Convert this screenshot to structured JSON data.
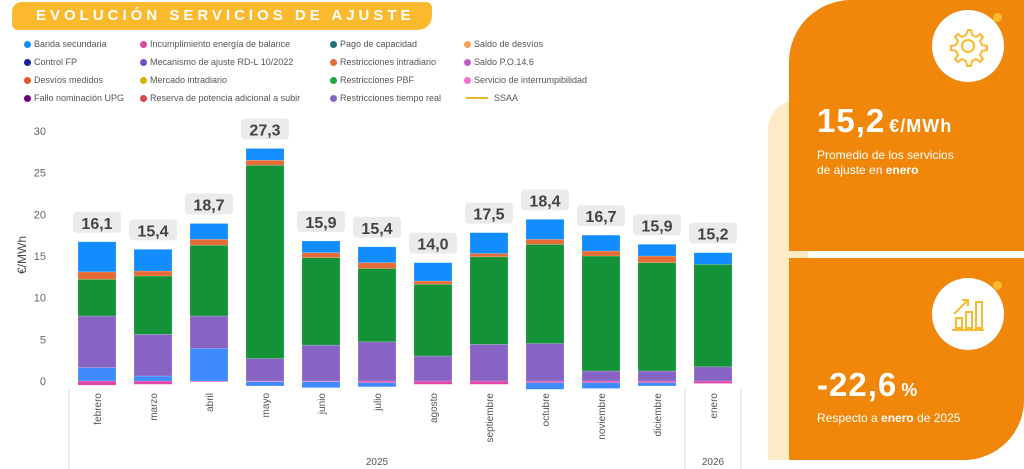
{
  "title": "EVOLUCIÓN SERVICIOS DE AJUSTE",
  "legend": [
    {
      "label": "Banda secundaria",
      "color": "#118DFF",
      "kind": "dot"
    },
    {
      "label": "Incumplimiento energía de balance",
      "color": "#E044A7",
      "kind": "dot"
    },
    {
      "label": "Pago de capacidad",
      "color": "#197278",
      "kind": "dot"
    },
    {
      "label": "Saldo de desvíos",
      "color": "#FFA058",
      "kind": "dot"
    },
    {
      "label": "Control FP",
      "color": "#12239E",
      "kind": "dot"
    },
    {
      "label": "Mecanismo de ajuste RD-L 10/2022",
      "color": "#744EC2",
      "kind": "dot"
    },
    {
      "label": "Restricciones intradiario",
      "color": "#E66C37",
      "kind": "dot"
    },
    {
      "label": "Saldo P.O.14.6",
      "color": "#BE5DC9",
      "kind": "dot"
    },
    {
      "label": "Desvíos medidos",
      "color": "#E8552A",
      "kind": "dot"
    },
    {
      "label": "Mercado intradiario",
      "color": "#D9B300",
      "kind": "dot"
    },
    {
      "label": "Restricciones PBF",
      "color": "#1AAB40",
      "kind": "dot"
    },
    {
      "label": "Servicio de interrumpibilidad",
      "color": "#F472D0",
      "kind": "dot"
    },
    {
      "label": "Fallo nominación UPG",
      "color": "#6B007B",
      "kind": "dot"
    },
    {
      "label": "Reserva de potencia adicional a subir",
      "color": "#D64550",
      "kind": "dot"
    },
    {
      "label": "Restricciones tiempo real",
      "color": "#8764C4",
      "kind": "dot"
    },
    {
      "label": "SSAA",
      "color": "#E5B82A",
      "kind": "line"
    }
  ],
  "chart_data": {
    "type": "bar",
    "stacked": true,
    "ylabel": "€/MWh",
    "ylim": [
      0,
      30
    ],
    "yticks": [
      0,
      5,
      10,
      15,
      20,
      25,
      30
    ],
    "categories": [
      "febrero",
      "marzo",
      "abril",
      "mayo",
      "junio",
      "julio",
      "agosto",
      "septiembre",
      "octubre",
      "noviembre",
      "diciembre",
      "enero"
    ],
    "year_groups": [
      {
        "label": "2025",
        "count": 11
      },
      {
        "label": "2026",
        "count": 1
      }
    ],
    "series": [
      {
        "name": "Incumplimiento energía de balance",
        "color": "#E044A7",
        "values": [
          -0.5,
          -0.4,
          -0.1,
          -0.1,
          -0.1,
          -0.2,
          -0.4,
          -0.4,
          -0.2,
          -0.2,
          -0.2,
          -0.3
        ]
      },
      {
        "name": "Mecanismo de ajuste RD-L 10/2022",
        "color": "#3D8BFF",
        "values": [
          1.6,
          0.6,
          3.9,
          -0.5,
          -0.7,
          -0.5,
          0,
          0,
          -0.8,
          -0.7,
          -0.4,
          0
        ]
      },
      {
        "name": "Restricciones tiempo real",
        "color": "#8764C4",
        "values": [
          6.2,
          5.0,
          3.9,
          2.7,
          4.3,
          4.7,
          3.0,
          4.4,
          4.5,
          1.2,
          1.2,
          1.7
        ]
      },
      {
        "name": "Restricciones PBF",
        "color": "#139237",
        "values": [
          4.4,
          7.0,
          8.5,
          23.2,
          10.5,
          8.8,
          8.6,
          10.5,
          11.9,
          13.8,
          13.0,
          12.3
        ]
      },
      {
        "name": "Restricciones intradiario",
        "color": "#E66C37",
        "values": [
          0.9,
          0.6,
          0.7,
          0.6,
          0.6,
          0.7,
          0.4,
          0.4,
          0.6,
          0.6,
          0.8,
          0
        ]
      },
      {
        "name": "Banda secundaria",
        "color": "#118DFF",
        "values": [
          3.6,
          2.6,
          1.9,
          1.4,
          1.4,
          1.9,
          2.2,
          2.5,
          2.4,
          1.9,
          1.4,
          1.4
        ]
      }
    ],
    "totals": [
      "16,1",
      "15,4",
      "18,7",
      "27,3",
      "15,9",
      "15,4",
      "14,0",
      "17,5",
      "18,4",
      "16,7",
      "15,9",
      "15,2"
    ],
    "grid": false,
    "legend_position": "top"
  },
  "kpi1": {
    "value": "15,2",
    "unit": "€/MWh",
    "line1": "Promedio de los servicios",
    "line2_pre": "de ajuste en ",
    "line2_bold": "enero",
    "icon": "gear-icon"
  },
  "kpi2": {
    "value": "-22,6",
    "unit": "%",
    "pre": "Respecto a ",
    "bold": "enero",
    "post": " de 2025",
    "icon": "growth-chart-icon"
  }
}
